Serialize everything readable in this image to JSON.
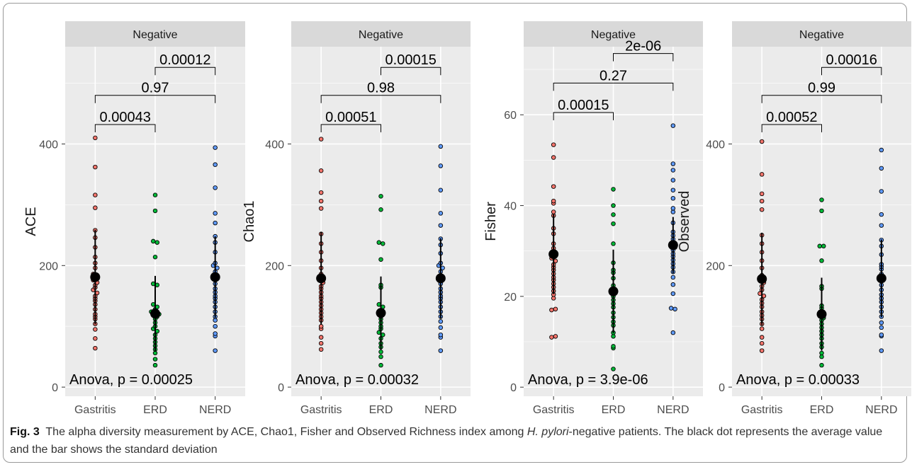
{
  "caption": {
    "label": "Fig. 3",
    "part1": "The alpha diversity measurement by ACE, Chao1, Fisher and Observed Richness index among ",
    "species": "H. pylori",
    "part2": "-negative patients. The black dot represents the average value and the bar shows the standard deviation"
  },
  "colors": {
    "Gastritis": "#F8766D",
    "ERD": "#00BA38",
    "NERD": "#619CFF",
    "panel_bg": "#EBEBEB",
    "strip_bg": "#D9D9D9",
    "grid": "#FFFFFF",
    "mean": "#000000"
  },
  "chart_data": [
    {
      "type": "scatter",
      "title": "Negative",
      "ylabel": "ACE",
      "xlabel": "",
      "categories": [
        "Gastritis",
        "ERD",
        "NERD"
      ],
      "ylim": [
        -15,
        560
      ],
      "yticks": [
        0,
        200,
        400
      ],
      "grid": true,
      "series": [
        {
          "name": "Gastritis",
          "values": [
            410,
            362,
            316,
            295,
            258,
            246,
            230,
            214,
            204,
            196,
            186,
            184,
            182,
            180,
            176,
            172,
            168,
            164,
            160,
            155,
            150,
            146,
            142,
            136,
            128,
            120,
            116,
            112,
            104,
            95,
            80,
            64
          ],
          "mean": 181,
          "sd": 78
        },
        {
          "name": "ERD",
          "values": [
            316,
            290,
            240,
            238,
            214,
            170,
            168,
            136,
            132,
            128,
            124,
            122,
            120,
            118,
            116,
            112,
            106,
            100,
            96,
            92,
            86,
            80,
            74,
            68,
            62,
            56,
            46,
            36
          ],
          "mean": 121,
          "sd": 62
        },
        {
          "name": "NERD",
          "values": [
            394,
            366,
            328,
            286,
            270,
            248,
            238,
            222,
            204,
            200,
            196,
            190,
            182,
            176,
            170,
            162,
            156,
            150,
            146,
            140,
            132,
            124,
            116,
            110,
            100,
            88,
            84,
            60
          ],
          "mean": 181,
          "sd": 67
        }
      ],
      "comparisons": [
        {
          "from": "Gastritis",
          "to": "ERD",
          "label": "0.00043",
          "y": 432
        },
        {
          "from": "Gastritis",
          "to": "NERD",
          "label": "0.97",
          "y": 480
        },
        {
          "from": "ERD",
          "to": "NERD",
          "label": "0.00012",
          "y": 526
        }
      ],
      "annotation": "Anova, p = 0.00025"
    },
    {
      "type": "scatter",
      "title": "Negative",
      "ylabel": "Chao1",
      "xlabel": "",
      "categories": [
        "Gastritis",
        "ERD",
        "NERD"
      ],
      "ylim": [
        -15,
        560
      ],
      "yticks": [
        0,
        200,
        400
      ],
      "grid": true,
      "series": [
        {
          "name": "Gastritis",
          "values": [
            408,
            356,
            320,
            306,
            294,
            252,
            236,
            222,
            208,
            196,
            186,
            180,
            176,
            172,
            166,
            162,
            156,
            150,
            146,
            140,
            134,
            128,
            122,
            116,
            110,
            100,
            96,
            82,
            72,
            62
          ],
          "mean": 179,
          "sd": 76
        },
        {
          "name": "ERD",
          "values": [
            314,
            292,
            238,
            236,
            210,
            168,
            164,
            136,
            132,
            126,
            120,
            116,
            112,
            106,
            100,
            96,
            90,
            86,
            80,
            72,
            66,
            58,
            50,
            36
          ],
          "mean": 122,
          "sd": 60
        },
        {
          "name": "NERD",
          "values": [
            396,
            364,
            324,
            286,
            266,
            244,
            234,
            220,
            204,
            200,
            196,
            190,
            180,
            170,
            162,
            156,
            150,
            146,
            140,
            132,
            124,
            116,
            108,
            98,
            86,
            82,
            60
          ],
          "mean": 179,
          "sd": 66
        }
      ],
      "comparisons": [
        {
          "from": "Gastritis",
          "to": "ERD",
          "label": "0.00051",
          "y": 432
        },
        {
          "from": "Gastritis",
          "to": "NERD",
          "label": "0.98",
          "y": 480
        },
        {
          "from": "ERD",
          "to": "NERD",
          "label": "0.00015",
          "y": 526
        }
      ],
      "annotation": "Anova, p = 0.00032"
    },
    {
      "type": "scatter",
      "title": "Negative",
      "ylabel": "Fisher",
      "xlabel": "",
      "categories": [
        "Gastritis",
        "ERD",
        "NERD"
      ],
      "ylim": [
        -2,
        75
      ],
      "yticks": [
        0,
        20,
        40,
        60
      ],
      "grid": true,
      "series": [
        {
          "name": "Gastritis",
          "values": [
            53.4,
            50.6,
            44.2,
            41,
            40.5,
            38.6,
            37.8,
            35,
            33.8,
            31.6,
            30.6,
            29.6,
            29,
            28.4,
            27.8,
            27,
            26.4,
            25.8,
            25,
            24.2,
            23.6,
            22.8,
            22,
            21.2,
            20.4,
            19.6,
            17,
            17.2,
            11,
            11.2
          ],
          "mean": 29.3,
          "sd": 8.8
        },
        {
          "name": "ERD",
          "values": [
            43.6,
            40,
            38,
            36,
            31.6,
            27.4,
            25.8,
            25.2,
            24,
            22.4,
            21.6,
            20.8,
            20,
            19.2,
            18.4,
            17.6,
            16.4,
            15.4,
            14.4,
            13.6,
            12,
            11.2,
            9,
            8.6,
            4
          ],
          "mean": 21.1,
          "sd": 9.2
        },
        {
          "name": "NERD",
          "values": [
            57.6,
            49.2,
            47.8,
            45.6,
            43.4,
            41.6,
            39.4,
            38.6,
            36.2,
            34.2,
            33.4,
            32.6,
            32,
            31.4,
            30.8,
            30.2,
            29.4,
            28.8,
            28,
            27.2,
            26.4,
            25.4,
            24.2,
            22.6,
            20.6,
            17.4,
            17.2,
            12
          ],
          "mean": 31.3,
          "sd": 6.2
        }
      ],
      "comparisons": [
        {
          "from": "Gastritis",
          "to": "ERD",
          "label": "0.00015",
          "y": 60.5
        },
        {
          "from": "Gastritis",
          "to": "NERD",
          "label": "0.27",
          "y": 67
        },
        {
          "from": "ERD",
          "to": "NERD",
          "label": "2e-06",
          "y": 73.5
        }
      ],
      "annotation": "Anova, p = 3.9e-06"
    },
    {
      "type": "scatter",
      "title": "Negative",
      "ylabel": "Observed",
      "xlabel": "",
      "categories": [
        "Gastritis",
        "ERD",
        "NERD"
      ],
      "ylim": [
        -15,
        560
      ],
      "yticks": [
        0,
        200,
        400
      ],
      "grid": true,
      "series": [
        {
          "name": "Gastritis",
          "values": [
            404,
            350,
            318,
            306,
            292,
            250,
            236,
            222,
            208,
            196,
            184,
            180,
            176,
            172,
            166,
            160,
            154,
            150,
            144,
            138,
            132,
            124,
            118,
            112,
            104,
            96,
            82,
            72,
            60
          ],
          "mean": 178,
          "sd": 76
        },
        {
          "name": "ERD",
          "values": [
            308,
            290,
            232,
            232,
            208,
            166,
            162,
            134,
            130,
            124,
            118,
            114,
            110,
            104,
            98,
            92,
            86,
            80,
            72,
            66,
            56,
            50,
            36
          ],
          "mean": 120,
          "sd": 60
        },
        {
          "name": "NERD",
          "values": [
            390,
            360,
            322,
            284,
            266,
            242,
            232,
            218,
            202,
            198,
            194,
            186,
            176,
            168,
            160,
            152,
            146,
            140,
            132,
            124,
            116,
            106,
            98,
            86,
            84,
            60
          ],
          "mean": 179,
          "sd": 64
        }
      ],
      "comparisons": [
        {
          "from": "Gastritis",
          "to": "ERD",
          "label": "0.00052",
          "y": 432
        },
        {
          "from": "Gastritis",
          "to": "NERD",
          "label": "0.99",
          "y": 480
        },
        {
          "from": "ERD",
          "to": "NERD",
          "label": "0.00016",
          "y": 526
        }
      ],
      "annotation": "Anova, p = 0.00033"
    }
  ]
}
